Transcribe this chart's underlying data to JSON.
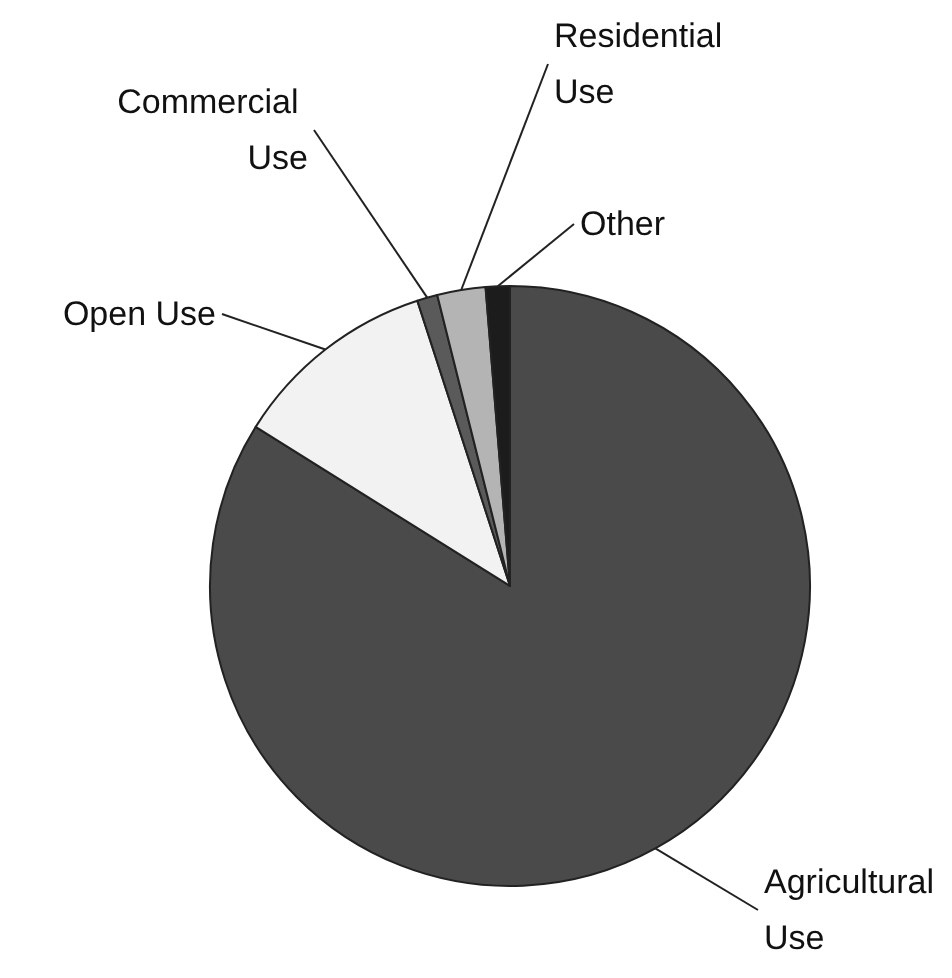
{
  "chart_data": {
    "type": "pie",
    "categories": [
      "Agricultural Use",
      "Open Use",
      "Commercial Use",
      "Residential Use",
      "Other"
    ],
    "values": [
      83.9,
      11.1,
      1.1,
      2.6,
      1.3
    ],
    "colors": [
      "#4a4a4a",
      "#f2f2f2",
      "#5a5a5a",
      "#b4b4b4",
      "#1c1c1c"
    ]
  }
}
